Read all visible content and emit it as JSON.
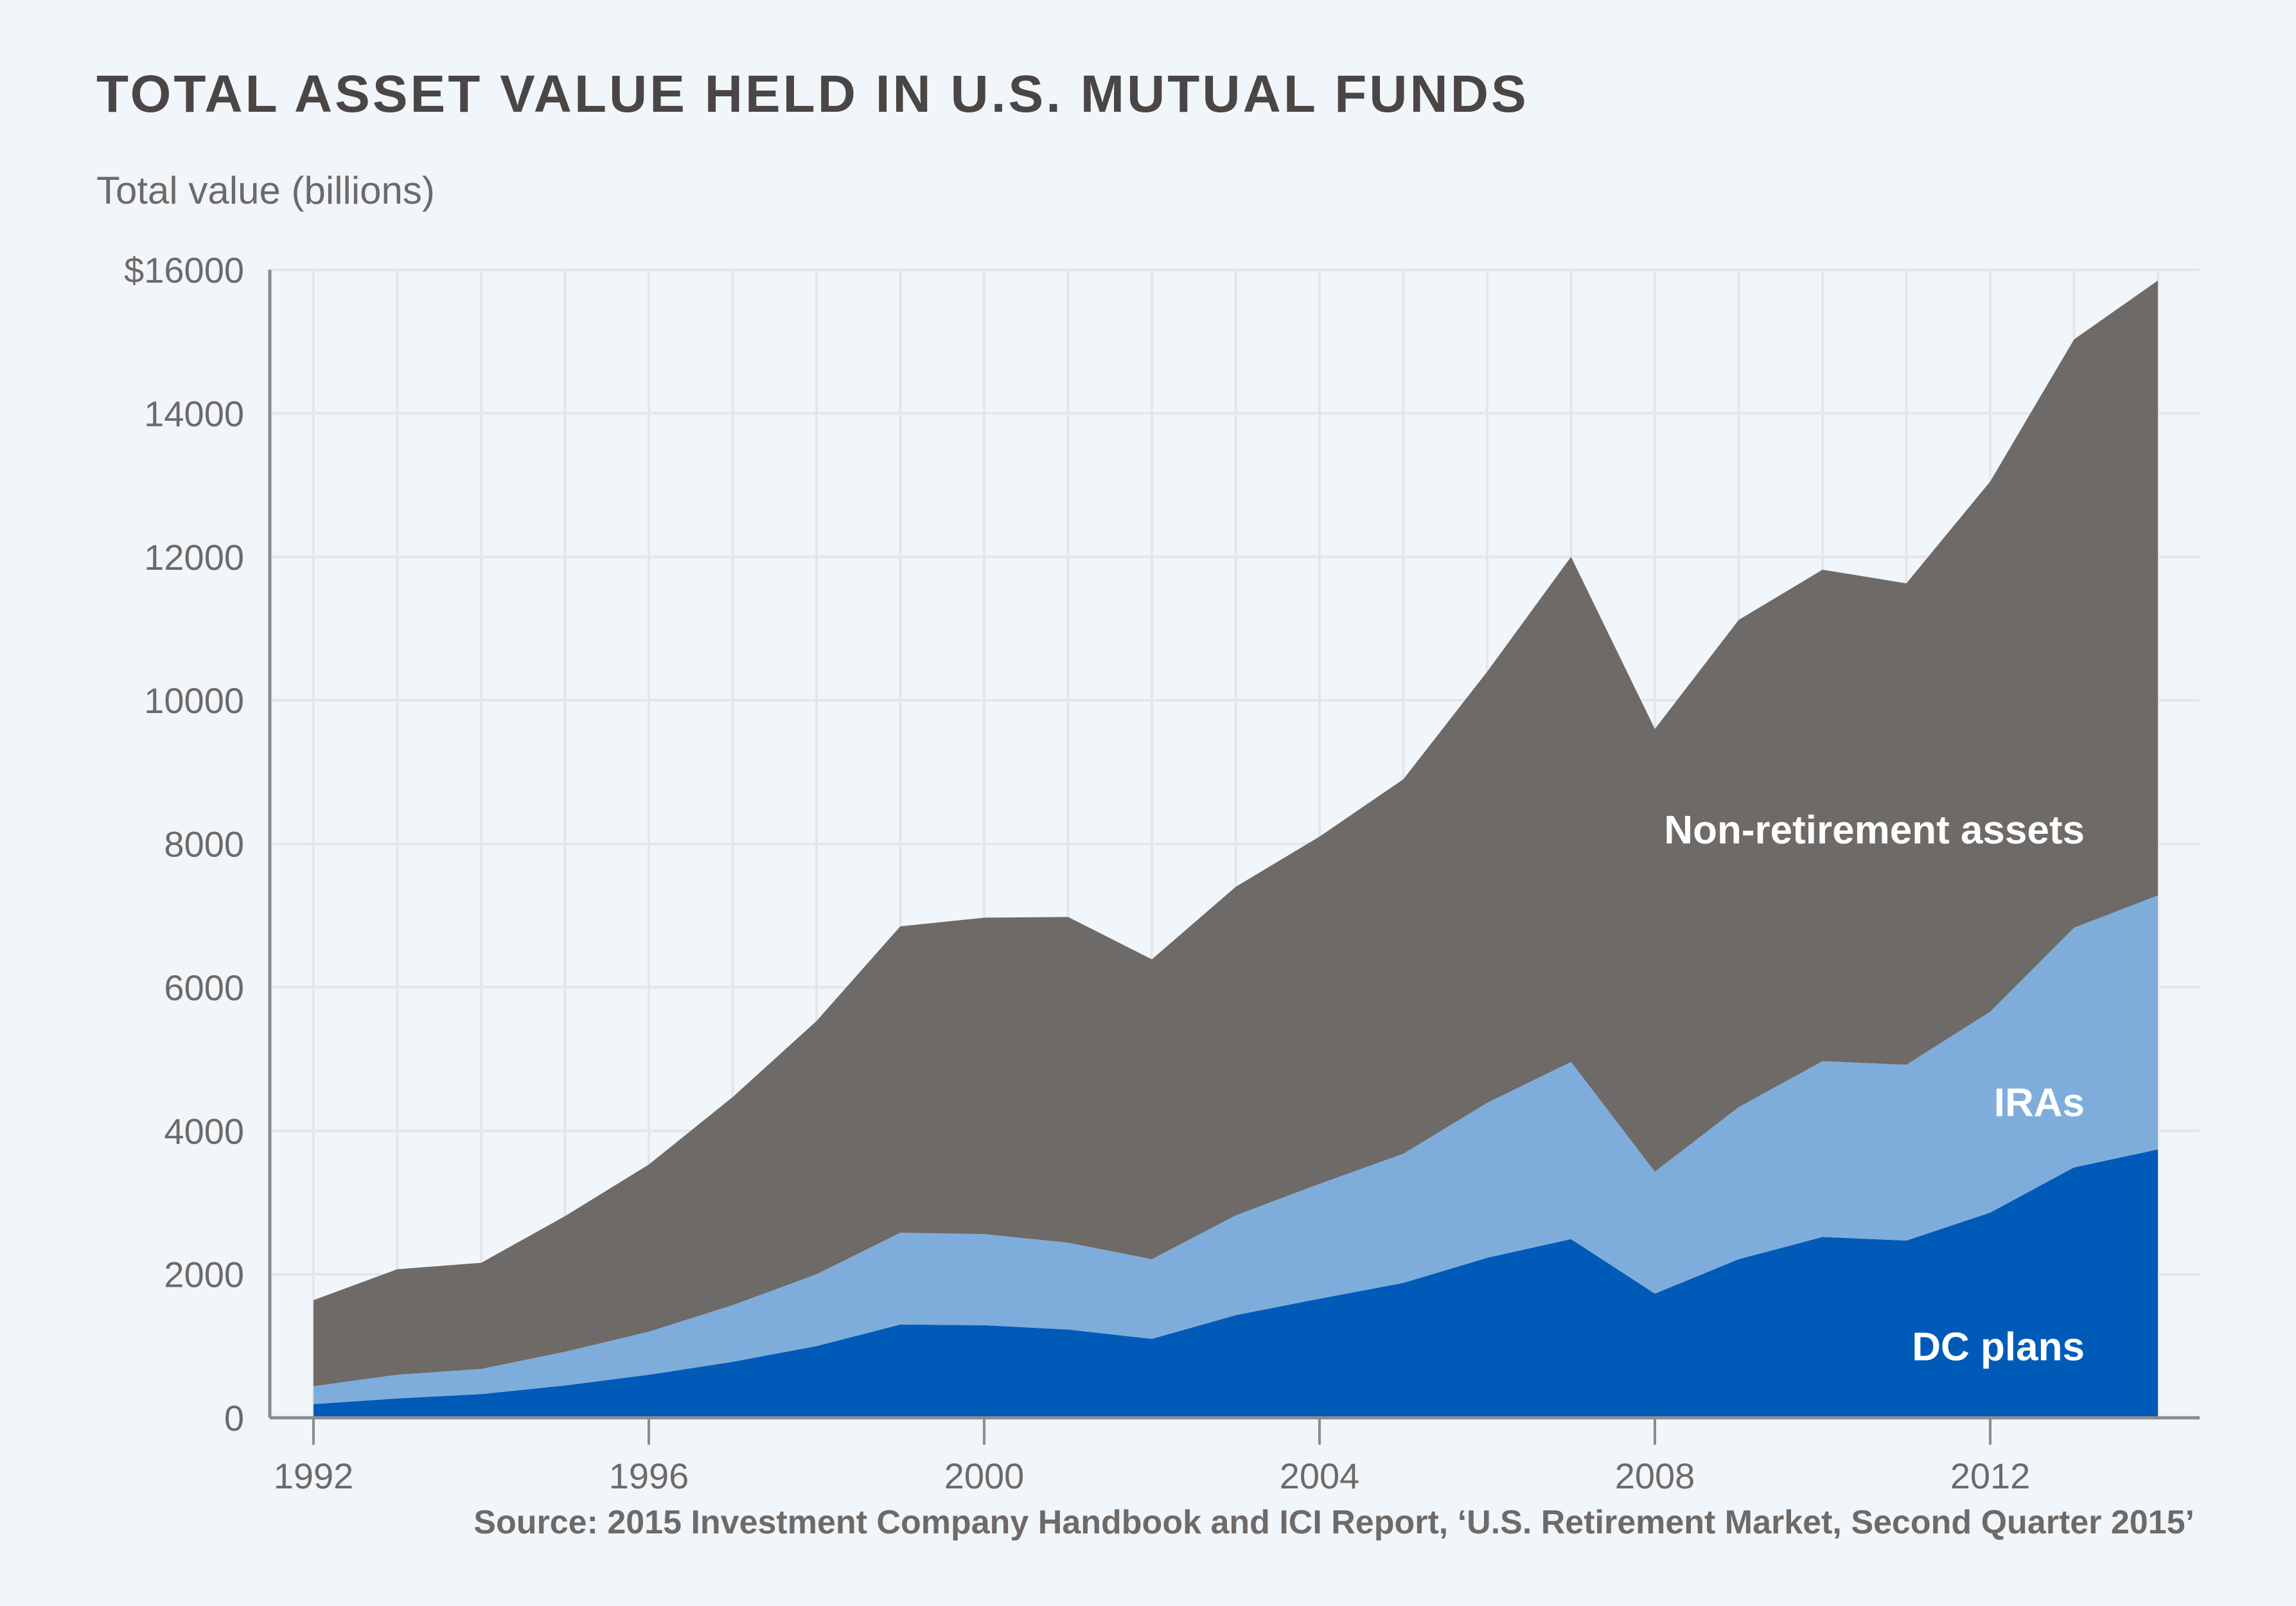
{
  "chart_data": {
    "type": "area",
    "stacked": true,
    "title": "TOTAL ASSET VALUE HELD IN U.S. MUTUAL FUNDS",
    "ylabel": "Total value (billions)",
    "xlabel": "",
    "source": "Source: 2015 Investment Company Handbook and ICI Report, ‘U.S. Retirement Market, Second Quarter 2015’",
    "x": [
      1992,
      1993,
      1994,
      1995,
      1996,
      1997,
      1998,
      1999,
      2000,
      2001,
      2002,
      2003,
      2004,
      2005,
      2006,
      2007,
      2008,
      2009,
      2010,
      2011,
      2012,
      2013,
      2014
    ],
    "xlim": [
      1992,
      2015.2
    ],
    "ylim": [
      0,
      16000
    ],
    "x_ticks": [
      1992,
      1996,
      2000,
      2004,
      2008,
      2012
    ],
    "x_tick_labels": [
      "1992",
      "1996",
      "2000",
      "2004",
      "2008",
      "2012"
    ],
    "y_ticks": [
      0,
      2000,
      4000,
      6000,
      8000,
      10000,
      12000,
      14000,
      16000
    ],
    "y_tick_labels": [
      "0",
      "2000",
      "4000",
      "6000",
      "8000",
      "10000",
      "12000",
      "14000",
      "$16000"
    ],
    "grid": true,
    "series": [
      {
        "name": "DC plans",
        "color": "#005bb8",
        "values": [
          190,
          270,
          330,
          450,
          600,
          780,
          1000,
          1300,
          1290,
          1230,
          1100,
          1430,
          1660,
          1880,
          2230,
          2490,
          1730,
          2210,
          2520,
          2470,
          2860,
          3490,
          3740
        ]
      },
      {
        "name": "IRAs",
        "color": "#7faddb",
        "values": [
          250,
          330,
          350,
          470,
          600,
          790,
          1000,
          1280,
          1270,
          1210,
          1110,
          1390,
          1600,
          1800,
          2160,
          2470,
          1700,
          2120,
          2450,
          2450,
          2800,
          3340,
          3540
        ]
      },
      {
        "name": "Non-retirement assets",
        "color": "#6e6a67",
        "values": [
          1200,
          1470,
          1480,
          1890,
          2330,
          2900,
          3530,
          4270,
          4410,
          4540,
          4180,
          4580,
          4840,
          5220,
          6010,
          7040,
          6170,
          6790,
          6850,
          6710,
          7390,
          8200,
          8570
        ]
      }
    ],
    "totals": [
      1640,
      2070,
      2160,
      2810,
      3530,
      4470,
      5530,
      6850,
      6970,
      6980,
      6390,
      7400,
      8100,
      8900,
      10400,
      12000,
      9600,
      11120,
      11820,
      11630,
      13050,
      15030,
      15850
    ]
  }
}
